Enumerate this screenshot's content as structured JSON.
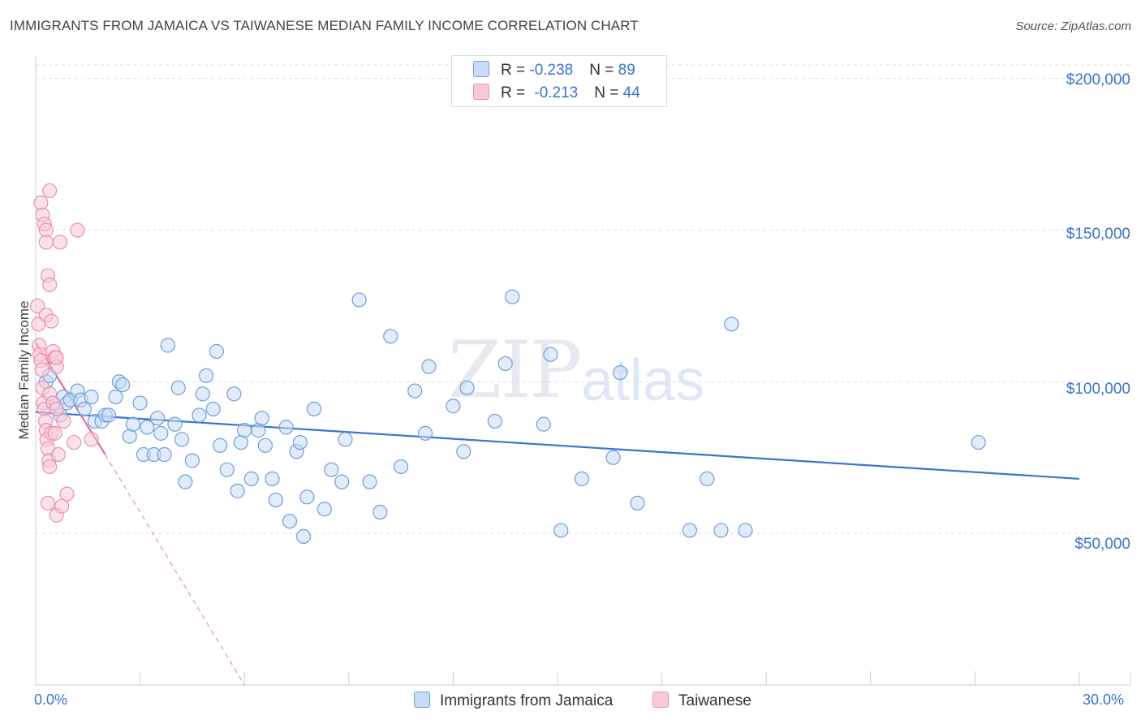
{
  "title": "IMMIGRANTS FROM JAMAICA VS TAIWANESE MEDIAN FAMILY INCOME CORRELATION CHART",
  "source": "Source: ZipAtlas.com",
  "watermark": {
    "zip": "ZIP",
    "atlas": "atlas"
  },
  "colors": {
    "blue": "#3a73cf",
    "blue_fill": "#c9dbf6",
    "blue_stroke": "#6f9ddd",
    "pink": "#e56b98",
    "pink_fill": "#f8cad8",
    "pink_stroke": "#ea8fae"
  },
  "legend": {
    "rows": [
      {
        "r_label": "R = ",
        "r_value": "-0.238",
        "n_label": "N = ",
        "n_value": "89"
      },
      {
        "r_label": "R = ",
        "r_value": "-0.213",
        "n_label": "N = ",
        "n_value": "44"
      }
    ]
  },
  "chart_data": {
    "type": "scatter",
    "title": "IMMIGRANTS FROM JAMAICA VS TAIWANESE MEDIAN FAMILY INCOME CORRELATION CHART",
    "xlabel": "",
    "ylabel": "Median Family Income",
    "xlim": [
      0,
      30
    ],
    "ylim": [
      0,
      205000
    ],
    "x_tick_labels": [
      "0.0%",
      "30.0%"
    ],
    "y_ticks": [
      50000,
      100000,
      150000,
      200000
    ],
    "y_tick_labels": [
      "$50,000",
      "$100,000",
      "$150,000",
      "$200,000"
    ],
    "grid": true,
    "series": [
      {
        "name": "Immigrants from Jamaica",
        "r": -0.238,
        "n": 89,
        "trend": {
          "x": [
            0.0,
            30.0
          ],
          "y": [
            90000,
            68000
          ]
        },
        "points": [
          [
            0.3,
            100000
          ],
          [
            0.4,
            102000
          ],
          [
            0.5,
            93000
          ],
          [
            0.6,
            91000
          ],
          [
            0.7,
            89000
          ],
          [
            0.8,
            95000
          ],
          [
            0.9,
            93000
          ],
          [
            1.0,
            94000
          ],
          [
            1.2,
            97000
          ],
          [
            1.3,
            94000
          ],
          [
            1.4,
            91000
          ],
          [
            1.6,
            95000
          ],
          [
            1.7,
            87000
          ],
          [
            1.9,
            87000
          ],
          [
            2.0,
            89000
          ],
          [
            2.1,
            89000
          ],
          [
            2.3,
            95000
          ],
          [
            2.4,
            100000
          ],
          [
            2.5,
            99000
          ],
          [
            2.7,
            82000
          ],
          [
            2.8,
            86000
          ],
          [
            3.0,
            93000
          ],
          [
            3.1,
            76000
          ],
          [
            3.2,
            85000
          ],
          [
            3.4,
            76000
          ],
          [
            3.5,
            88000
          ],
          [
            3.6,
            83000
          ],
          [
            3.7,
            76000
          ],
          [
            3.8,
            112000
          ],
          [
            4.0,
            86000
          ],
          [
            4.1,
            98000
          ],
          [
            4.2,
            81000
          ],
          [
            4.3,
            67000
          ],
          [
            4.5,
            74000
          ],
          [
            4.7,
            89000
          ],
          [
            4.8,
            96000
          ],
          [
            4.9,
            102000
          ],
          [
            5.1,
            91000
          ],
          [
            5.2,
            110000
          ],
          [
            5.3,
            79000
          ],
          [
            5.5,
            71000
          ],
          [
            5.7,
            96000
          ],
          [
            5.8,
            64000
          ],
          [
            5.9,
            80000
          ],
          [
            6.0,
            84000
          ],
          [
            6.2,
            68000
          ],
          [
            6.4,
            84000
          ],
          [
            6.6,
            79000
          ],
          [
            6.5,
            88000
          ],
          [
            6.8,
            68000
          ],
          [
            6.9,
            61000
          ],
          [
            7.2,
            85000
          ],
          [
            7.3,
            54000
          ],
          [
            7.5,
            77000
          ],
          [
            7.6,
            80000
          ],
          [
            7.7,
            49000
          ],
          [
            7.8,
            62000
          ],
          [
            8.0,
            91000
          ],
          [
            8.3,
            58000
          ],
          [
            8.5,
            71000
          ],
          [
            8.8,
            67000
          ],
          [
            8.9,
            81000
          ],
          [
            9.3,
            127000
          ],
          [
            9.6,
            67000
          ],
          [
            9.9,
            57000
          ],
          [
            10.2,
            115000
          ],
          [
            10.5,
            72000
          ],
          [
            10.9,
            97000
          ],
          [
            11.2,
            83000
          ],
          [
            11.3,
            105000
          ],
          [
            12.0,
            92000
          ],
          [
            12.3,
            77000
          ],
          [
            12.4,
            98000
          ],
          [
            13.2,
            87000
          ],
          [
            13.5,
            106000
          ],
          [
            13.7,
            128000
          ],
          [
            14.6,
            86000
          ],
          [
            14.8,
            109000
          ],
          [
            15.1,
            51000
          ],
          [
            15.7,
            68000
          ],
          [
            16.6,
            75000
          ],
          [
            16.8,
            103000
          ],
          [
            17.3,
            60000
          ],
          [
            18.8,
            51000
          ],
          [
            19.3,
            68000
          ],
          [
            19.7,
            51000
          ],
          [
            20.0,
            119000
          ],
          [
            20.4,
            51000
          ],
          [
            27.1,
            80000
          ]
        ]
      },
      {
        "name": "Taiwanese",
        "r": -0.213,
        "n": 44,
        "trend": {
          "x": [
            0.0,
            2.0
          ],
          "y": [
            113000,
            76000
          ],
          "extended": {
            "x": [
              2.0,
              6.0
            ],
            "y": [
              76000,
              0
            ]
          }
        },
        "points": [
          [
            0.05,
            125000
          ],
          [
            0.08,
            119000
          ],
          [
            0.1,
            112000
          ],
          [
            0.12,
            109000
          ],
          [
            0.15,
            107000
          ],
          [
            0.18,
            104000
          ],
          [
            0.2,
            98000
          ],
          [
            0.22,
            93000
          ],
          [
            0.25,
            91000
          ],
          [
            0.28,
            87000
          ],
          [
            0.3,
            84000
          ],
          [
            0.32,
            81000
          ],
          [
            0.35,
            78000
          ],
          [
            0.38,
            74000
          ],
          [
            0.4,
            72000
          ],
          [
            0.15,
            159000
          ],
          [
            0.2,
            155000
          ],
          [
            0.25,
            152000
          ],
          [
            0.3,
            150000
          ],
          [
            0.35,
            135000
          ],
          [
            0.4,
            132000
          ],
          [
            0.3,
            122000
          ],
          [
            0.45,
            120000
          ],
          [
            0.5,
            110000
          ],
          [
            0.55,
            108000
          ],
          [
            0.6,
            105000
          ],
          [
            0.4,
            96000
          ],
          [
            0.5,
            93000
          ],
          [
            0.6,
            91000
          ],
          [
            0.45,
            83000
          ],
          [
            0.55,
            83000
          ],
          [
            0.6,
            108000
          ],
          [
            0.65,
            76000
          ],
          [
            0.7,
            146000
          ],
          [
            0.8,
            87000
          ],
          [
            0.9,
            63000
          ],
          [
            0.35,
            60000
          ],
          [
            0.6,
            56000
          ],
          [
            0.75,
            59000
          ],
          [
            1.1,
            80000
          ],
          [
            1.2,
            150000
          ],
          [
            1.6,
            81000
          ],
          [
            0.4,
            163000
          ],
          [
            0.3,
            146000
          ]
        ]
      }
    ]
  },
  "bottom_legend": [
    "Immigrants from Jamaica",
    "Taiwanese"
  ]
}
